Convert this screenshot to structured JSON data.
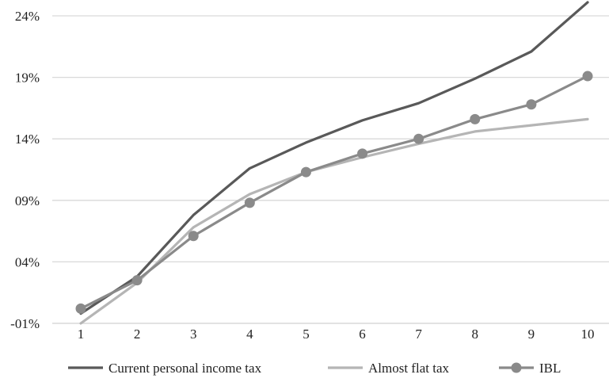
{
  "chart_data": {
    "type": "line",
    "title": "",
    "xlabel": "",
    "ylabel": "",
    "categories": [
      "1",
      "2",
      "3",
      "4",
      "5",
      "6",
      "7",
      "8",
      "9",
      "10"
    ],
    "y_ticks": [
      "-01%",
      "04%",
      "09%",
      "14%",
      "19%",
      "24%"
    ],
    "y_tick_values": [
      -1,
      4,
      9,
      14,
      19,
      24
    ],
    "ylim": [
      -1,
      24
    ],
    "grid": true,
    "legend_position": "bottom",
    "series": [
      {
        "name": "Current personal income tax",
        "color": "#595959",
        "marker": "none",
        "values": [
          -0.2,
          2.8,
          7.8,
          11.6,
          13.7,
          15.5,
          16.9,
          18.9,
          21.1,
          25.1
        ]
      },
      {
        "name": "Almost flat tax",
        "color": "#b5b5b5",
        "marker": "none",
        "values": [
          -1.0,
          2.3,
          6.8,
          9.5,
          11.3,
          12.5,
          13.6,
          14.6,
          15.1,
          15.6
        ]
      },
      {
        "name": "IBL",
        "color": "#8a8a8a",
        "marker": "circle",
        "values": [
          0.2,
          2.5,
          6.1,
          8.8,
          11.3,
          12.8,
          14.0,
          15.6,
          16.8,
          19.1
        ]
      }
    ]
  }
}
